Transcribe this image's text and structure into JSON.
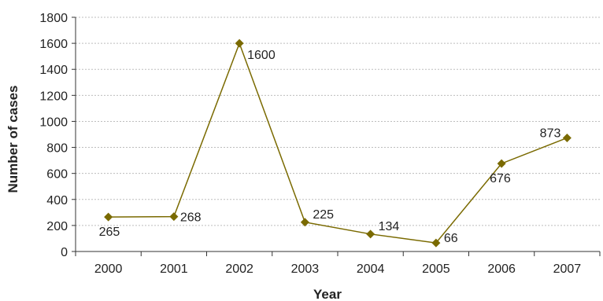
{
  "chart_data": {
    "type": "line",
    "title": "",
    "xlabel": "Year",
    "ylabel": "Number of cases",
    "categories": [
      "2000",
      "2001",
      "2002",
      "2003",
      "2004",
      "2005",
      "2006",
      "2007"
    ],
    "series": [
      {
        "values": [
          265,
          268,
          1600,
          225,
          134,
          66,
          676,
          873
        ]
      }
    ],
    "data_labels": [
      "265",
      "268",
      "1600",
      "225",
      "134",
      "66",
      "676",
      "873"
    ],
    "ylim": [
      0,
      1800
    ],
    "yticks": [
      0,
      200,
      400,
      600,
      800,
      1000,
      1200,
      1400,
      1600,
      1800
    ],
    "ytick_labels": [
      "0",
      "200",
      "400",
      "600",
      "800",
      "1000",
      "1200",
      "1400",
      "1600",
      "1800"
    ],
    "grid": "horizontal dashed",
    "line_color": "#7a6a00",
    "marker": "diamond"
  }
}
